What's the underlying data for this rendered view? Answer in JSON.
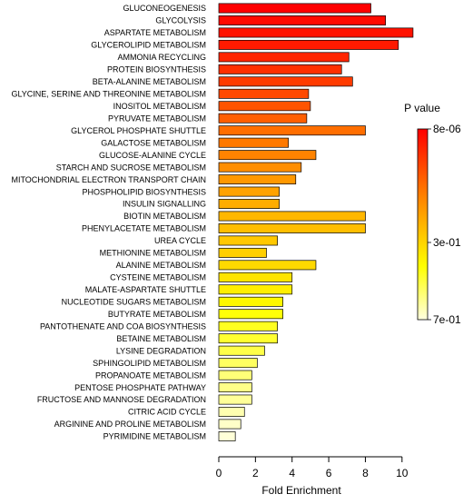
{
  "chart_data": {
    "type": "bar",
    "orientation": "horizontal",
    "title": "",
    "xlabel": "Fold Enrichment",
    "ylabel": "",
    "xlim": [
      0,
      11
    ],
    "xticks": [
      "0",
      "2",
      "4",
      "6",
      "8",
      "10"
    ],
    "grid": false,
    "categories": [
      "GLUCONEOGENESIS",
      "GLYCOLYSIS",
      "ASPARTATE METABOLISM",
      "GLYCEROLIPID METABOLISM",
      "AMMONIA RECYCLING",
      "PROTEIN BIOSYNTHESIS",
      "BETA-ALANINE METABOLISM",
      "GLYCINE, SERINE AND THREONINE METABOLISM",
      "INOSITOL METABOLISM",
      "PYRUVATE METABOLISM",
      "GLYCEROL PHOSPHATE SHUTTLE",
      "GALACTOSE METABOLISM",
      "GLUCOSE-ALANINE CYCLE",
      "STARCH AND SUCROSE METABOLISM",
      "MITOCHONDRIAL ELECTRON TRANSPORT CHAIN",
      "PHOSPHOLIPID BIOSYNTHESIS",
      "INSULIN SIGNALLING",
      "BIOTIN METABOLISM",
      "PHENYLACETATE METABOLISM",
      "UREA CYCLE",
      "METHIONINE METABOLISM",
      "ALANINE METABOLISM",
      "CYSTEINE METABOLISM",
      "MALATE-ASPARTATE SHUTTLE",
      "NUCLEOTIDE SUGARS METABOLISM",
      "BUTYRATE METABOLISM",
      "PANTOTHENATE AND COA BIOSYNTHESIS",
      "BETAINE METABOLISM",
      "LYSINE DEGRADATION",
      "SPHINGOLIPID METABOLISM",
      "PROPANOATE METABOLISM",
      "PENTOSE PHOSPHATE PATHWAY",
      "FRUCTOSE AND MANNOSE DEGRADATION",
      "CITRIC ACID CYCLE",
      "ARGININE AND PROLINE METABOLISM",
      "PYRIMIDINE METABOLISM"
    ],
    "values": [
      8.3,
      9.1,
      10.6,
      9.8,
      7.1,
      6.7,
      7.3,
      4.9,
      5.0,
      4.8,
      8.0,
      3.8,
      5.3,
      4.5,
      4.2,
      3.3,
      3.3,
      8.0,
      8.0,
      3.2,
      2.6,
      5.3,
      4.0,
      4.0,
      3.5,
      3.5,
      3.2,
      3.2,
      2.5,
      2.1,
      1.8,
      1.8,
      1.8,
      1.4,
      1.2,
      0.9
    ],
    "color_rank": [
      0.0,
      0.03,
      0.05,
      0.07,
      0.1,
      0.13,
      0.16,
      0.2,
      0.23,
      0.26,
      0.3,
      0.33,
      0.36,
      0.39,
      0.42,
      0.45,
      0.48,
      0.51,
      0.53,
      0.56,
      0.58,
      0.61,
      0.64,
      0.67,
      0.7,
      0.73,
      0.76,
      0.78,
      0.81,
      0.84,
      0.87,
      0.89,
      0.91,
      0.94,
      0.97,
      0.99
    ],
    "legend": {
      "title": "P value",
      "position": "right",
      "ticks": [
        "8e-06",
        "3e-01",
        "7e-01"
      ],
      "colors": [
        "#ff0000",
        "#ff8000",
        "#ffff00",
        "#ffffe0"
      ]
    },
    "bar_edge_color": "#000000"
  }
}
